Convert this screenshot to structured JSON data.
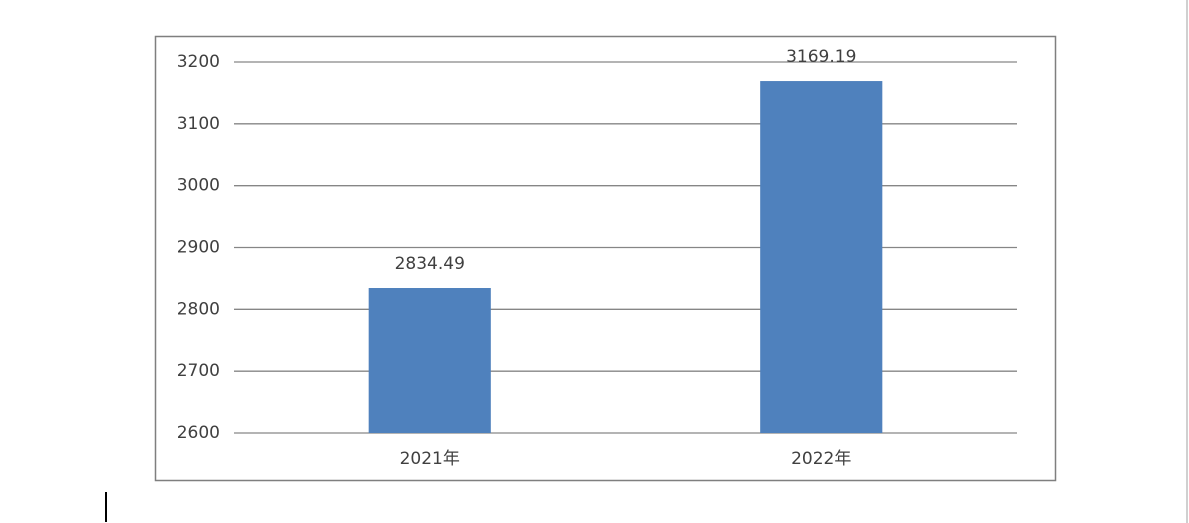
{
  "chart_data": {
    "type": "bar",
    "categories": [
      "2021年",
      "2022年"
    ],
    "values": [
      2834.49,
      3169.19
    ],
    "color": "#4f81bd",
    "ylim": [
      2600,
      3200
    ],
    "yticks": [
      2600,
      2700,
      2800,
      2900,
      3000,
      3100,
      3200
    ],
    "grid": true,
    "data_labels": true
  }
}
